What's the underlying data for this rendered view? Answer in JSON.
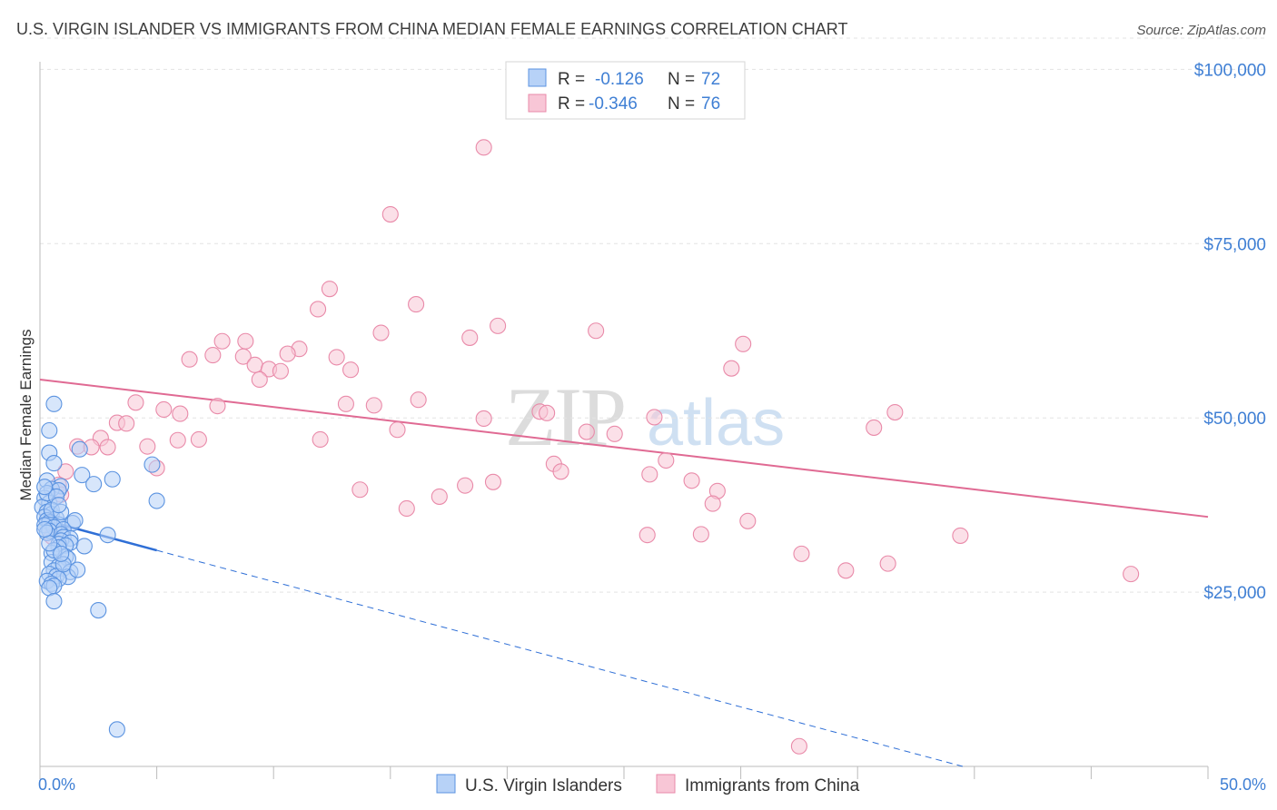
{
  "title": "U.S. VIRGIN ISLANDER VS IMMIGRANTS FROM CHINA MEDIAN FEMALE EARNINGS CORRELATION CHART",
  "source": "Source: ZipAtlas.com",
  "watermark": {
    "zip": "ZIP",
    "atlas": "atlas"
  },
  "colors": {
    "blue_fill": "#b7d2f7",
    "blue_stroke": "#5b93e0",
    "blue_line": "#2f6fd6",
    "pink_fill": "#f8c6d6",
    "pink_stroke": "#e98aa9",
    "pink_line": "#e06a93",
    "accent_text": "#3f7fd4",
    "grid": "#e3e3e3"
  },
  "legend": {
    "r_label": "R =",
    "n_label": "N =",
    "entries": [
      {
        "r": "-0.126",
        "n": "72"
      },
      {
        "r": "-0.346",
        "n": "76"
      }
    ]
  },
  "chart_data": {
    "type": "scatter",
    "title": "U.S. VIRGIN ISLANDER VS IMMIGRANTS FROM CHINA MEDIAN FEMALE EARNINGS CORRELATION CHART",
    "xlabel": "",
    "ylabel": "Median Female Earnings",
    "xlim": [
      0,
      50
    ],
    "ylim": [
      0,
      105000
    ],
    "x_tick_labels": [
      "0.0%",
      "50.0%"
    ],
    "y_ticks": [
      25000,
      50000,
      75000,
      100000
    ],
    "y_tick_labels": [
      "$25,000",
      "$50,000",
      "$75,000",
      "$100,000"
    ],
    "grid": true,
    "legend_position": "top-center",
    "series": [
      {
        "name": "U.S. Virgin Islanders",
        "color": "blue",
        "r": -0.126,
        "n": 72,
        "trend": {
          "x0": 0,
          "y0": 35500,
          "x1": 5,
          "y1": 31000,
          "dash_to_x": 39.5,
          "dash_to_y": 0
        },
        "points": [
          [
            0.6,
            52000
          ],
          [
            0.4,
            48200
          ],
          [
            0.4,
            45000
          ],
          [
            1.7,
            45500
          ],
          [
            0.6,
            43500
          ],
          [
            1.8,
            41800
          ],
          [
            3.1,
            41200
          ],
          [
            2.3,
            40500
          ],
          [
            0.3,
            41000
          ],
          [
            0.9,
            40200
          ],
          [
            0.5,
            39800
          ],
          [
            0.8,
            39600
          ],
          [
            0.2,
            38500
          ],
          [
            0.4,
            37800
          ],
          [
            0.1,
            37200
          ],
          [
            0.3,
            36500
          ],
          [
            0.5,
            36200
          ],
          [
            0.2,
            35800
          ],
          [
            0.7,
            35600
          ],
          [
            0.3,
            35300
          ],
          [
            0.4,
            35000
          ],
          [
            0.8,
            34700
          ],
          [
            1.4,
            34900
          ],
          [
            0.2,
            34600
          ],
          [
            0.6,
            34300
          ],
          [
            1.0,
            34000
          ],
          [
            0.4,
            33800
          ],
          [
            0.9,
            33300
          ],
          [
            2.9,
            33200
          ],
          [
            1.0,
            32900
          ],
          [
            1.3,
            32700
          ],
          [
            0.9,
            32400
          ],
          [
            1.3,
            32100
          ],
          [
            0.8,
            31900
          ],
          [
            1.1,
            31700
          ],
          [
            1.9,
            31600
          ],
          [
            0.8,
            31400
          ],
          [
            0.5,
            30600
          ],
          [
            1.1,
            30100
          ],
          [
            1.2,
            29800
          ],
          [
            0.5,
            29300
          ],
          [
            0.8,
            28700
          ],
          [
            1.0,
            28400
          ],
          [
            0.6,
            28100
          ],
          [
            1.3,
            27900
          ],
          [
            0.4,
            27600
          ],
          [
            0.7,
            27300
          ],
          [
            1.2,
            27200
          ],
          [
            0.8,
            26900
          ],
          [
            0.3,
            26600
          ],
          [
            0.5,
            26200
          ],
          [
            0.6,
            25900
          ],
          [
            0.4,
            25600
          ],
          [
            0.6,
            23700
          ],
          [
            2.5,
            22400
          ],
          [
            4.8,
            43300
          ],
          [
            5.0,
            38100
          ],
          [
            3.3,
            5300
          ],
          [
            0.3,
            39200
          ],
          [
            0.7,
            38700
          ],
          [
            0.2,
            40100
          ],
          [
            0.5,
            36800
          ],
          [
            0.9,
            36500
          ],
          [
            1.5,
            35300
          ],
          [
            0.3,
            33500
          ],
          [
            0.6,
            31000
          ],
          [
            1.0,
            29000
          ],
          [
            0.4,
            32000
          ],
          [
            0.8,
            37500
          ],
          [
            0.2,
            34000
          ],
          [
            1.6,
            28200
          ],
          [
            0.9,
            30500
          ]
        ]
      },
      {
        "name": "Immigrants from China",
        "color": "pink",
        "r": -0.346,
        "n": 76,
        "trend": {
          "x0": 0,
          "y0": 55500,
          "x1": 50,
          "y1": 35800
        },
        "points": [
          [
            19.0,
            88800
          ],
          [
            15.0,
            79200
          ],
          [
            12.4,
            68500
          ],
          [
            11.9,
            65600
          ],
          [
            16.1,
            66300
          ],
          [
            19.6,
            63200
          ],
          [
            14.6,
            62200
          ],
          [
            18.4,
            61500
          ],
          [
            23.8,
            62500
          ],
          [
            7.8,
            61000
          ],
          [
            8.8,
            61000
          ],
          [
            30.1,
            60600
          ],
          [
            11.1,
            59900
          ],
          [
            10.6,
            59200
          ],
          [
            7.4,
            59000
          ],
          [
            8.7,
            58800
          ],
          [
            12.7,
            58700
          ],
          [
            6.4,
            58400
          ],
          [
            9.2,
            57600
          ],
          [
            9.8,
            57000
          ],
          [
            10.3,
            56700
          ],
          [
            13.3,
            56900
          ],
          [
            29.6,
            57100
          ],
          [
            9.4,
            55500
          ],
          [
            4.1,
            52200
          ],
          [
            7.6,
            51700
          ],
          [
            13.1,
            52000
          ],
          [
            14.3,
            51800
          ],
          [
            16.2,
            52600
          ],
          [
            5.3,
            51200
          ],
          [
            6.0,
            50600
          ],
          [
            21.4,
            50900
          ],
          [
            21.7,
            50700
          ],
          [
            26.3,
            50100
          ],
          [
            36.6,
            50800
          ],
          [
            19.0,
            49900
          ],
          [
            3.3,
            49300
          ],
          [
            3.7,
            49200
          ],
          [
            15.3,
            48300
          ],
          [
            35.7,
            48600
          ],
          [
            23.4,
            48000
          ],
          [
            24.6,
            47700
          ],
          [
            2.6,
            47100
          ],
          [
            6.8,
            46900
          ],
          [
            12.0,
            46900
          ],
          [
            5.9,
            46800
          ],
          [
            1.6,
            45900
          ],
          [
            2.2,
            45800
          ],
          [
            2.9,
            45800
          ],
          [
            4.6,
            45900
          ],
          [
            26.8,
            43900
          ],
          [
            22.0,
            43400
          ],
          [
            5.0,
            42800
          ],
          [
            22.3,
            42300
          ],
          [
            1.1,
            42300
          ],
          [
            26.1,
            41900
          ],
          [
            27.9,
            41000
          ],
          [
            19.4,
            40800
          ],
          [
            0.8,
            40400
          ],
          [
            18.2,
            40300
          ],
          [
            13.7,
            39700
          ],
          [
            29.0,
            39500
          ],
          [
            0.9,
            39000
          ],
          [
            17.1,
            38700
          ],
          [
            28.8,
            37700
          ],
          [
            15.7,
            37000
          ],
          [
            30.3,
            35200
          ],
          [
            26.0,
            33200
          ],
          [
            28.3,
            33300
          ],
          [
            39.4,
            33100
          ],
          [
            32.6,
            30500
          ],
          [
            36.3,
            29100
          ],
          [
            34.5,
            28100
          ],
          [
            46.7,
            27600
          ],
          [
            32.5,
            2900
          ],
          [
            0.5,
            33000
          ]
        ]
      }
    ]
  }
}
